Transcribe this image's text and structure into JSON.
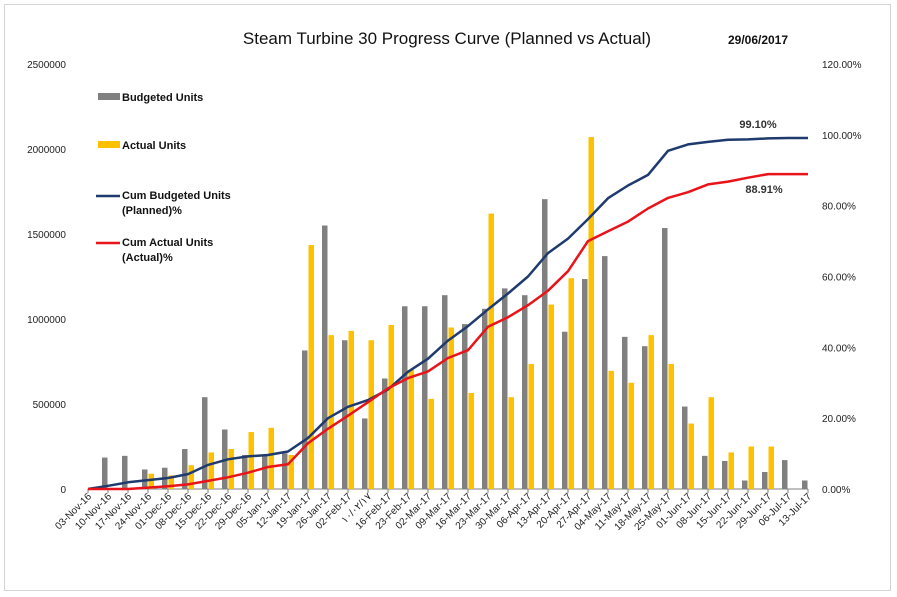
{
  "chart_data": {
    "type": "bar+line",
    "title": "Steam Turbine 30 Progress Curve (Planned vs Actual)",
    "date_label": "29/06/2017",
    "y_left": {
      "ticks": [
        "0",
        "500000",
        "1000000",
        "1500000",
        "2000000",
        "2500000"
      ],
      "ylim": [
        0,
        2500000
      ]
    },
    "y_right": {
      "ticks": [
        "0.00%",
        "20.00%",
        "40.00%",
        "60.00%",
        "80.00%",
        "100.00%",
        "120.00%"
      ],
      "ylim": [
        0,
        1.2
      ]
    },
    "categories": [
      "03-Nov-16",
      "10-Nov-16",
      "17-Nov-16",
      "24-Nov-16",
      "01-Dec-16",
      "08-Dec-16",
      "15-Dec-16",
      "22-Dec-16",
      "29-Dec-16",
      "05-Jan-17",
      "12-Jan-17",
      "19-Jan-17",
      "26-Jan-17",
      "02-Feb-17",
      "١٠/٠٢/١٧",
      "16-Feb-17",
      "23-Feb-17",
      "02-Mar-17",
      "09-Mar-17",
      "16-Mar-17",
      "23-Mar-17",
      "30-Mar-17",
      "06-Apr-17",
      "13-Apr-17",
      "20-Apr-17",
      "27-Apr-17",
      "04-May-17",
      "11-May-17",
      "18-May-17",
      "25-May-17",
      "01-Jun-17",
      "08-Jun-17",
      "15-Jun-17",
      "22-Jun-17",
      "29-Jun-17",
      "06-Jul-17",
      "13-Jul-17"
    ],
    "series": [
      {
        "name": "Budgeted Units",
        "kind": "bar",
        "color": "#808080",
        "values": [
          0,
          185000,
          195000,
          115000,
          125000,
          235000,
          540000,
          350000,
          200000,
          200000,
          210000,
          815000,
          1550000,
          875000,
          415000,
          650000,
          1075000,
          1075000,
          1140000,
          970000,
          1060000,
          1180000,
          1140000,
          1705000,
          925000,
          1235000,
          1370000,
          895000,
          840000,
          1535000,
          485000,
          195000,
          165000,
          50000,
          100000,
          170000,
          50000
        ]
      },
      {
        "name": "Actual Units",
        "kind": "bar",
        "color": "#ffc000",
        "values": [
          0,
          0,
          0,
          90000,
          80000,
          140000,
          215000,
          235000,
          335000,
          360000,
          200000,
          1435000,
          905000,
          930000,
          875000,
          965000,
          700000,
          530000,
          950000,
          565000,
          1620000,
          540000,
          735000,
          1085000,
          1240000,
          2070000,
          695000,
          625000,
          905000,
          735000,
          385000,
          540000,
          215000,
          250000,
          250000,
          0,
          0
        ]
      },
      {
        "name": "Cum Budgeted Units (Planned)%",
        "kind": "line",
        "axis": "right",
        "color": "#1f3a6e",
        "values": [
          0.0,
          0.009,
          0.019,
          0.025,
          0.031,
          0.042,
          0.068,
          0.084,
          0.092,
          0.096,
          0.106,
          0.144,
          0.2,
          0.232,
          0.251,
          0.281,
          0.331,
          0.368,
          0.419,
          0.46,
          0.507,
          0.552,
          0.6,
          0.666,
          0.707,
          0.762,
          0.821,
          0.857,
          0.887,
          0.955,
          0.973,
          0.98,
          0.986,
          0.987,
          0.99,
          0.991,
          0.991
        ]
      },
      {
        "name": "Cum Actual Units (Actual)%",
        "kind": "line",
        "axis": "right",
        "color": "#e8141a",
        "values": [
          0.0,
          0.0,
          0.0,
          0.004,
          0.008,
          0.013,
          0.023,
          0.033,
          0.046,
          0.062,
          0.07,
          0.129,
          0.17,
          0.207,
          0.245,
          0.284,
          0.313,
          0.332,
          0.37,
          0.392,
          0.458,
          0.485,
          0.519,
          0.56,
          0.615,
          0.7,
          0.728,
          0.755,
          0.792,
          0.822,
          0.838,
          0.86,
          0.868,
          0.879,
          0.889,
          0.889,
          0.889
        ]
      }
    ],
    "annotations": [
      {
        "text": "99.10%",
        "series": "Cum Budgeted Units (Planned)%"
      },
      {
        "text": "88.91%",
        "series": "Cum Actual Units (Actual)%"
      }
    ],
    "legend": [
      {
        "label": "Budgeted Units",
        "shape": "bar",
        "color": "#808080"
      },
      {
        "label": "Actual Units",
        "shape": "bar",
        "color": "#ffc000"
      },
      {
        "label_lines": [
          "Cum Budgeted Units",
          "(Planned)%"
        ],
        "shape": "line",
        "color": "#1f3a6e"
      },
      {
        "label_lines": [
          "Cum Actual Units",
          "(Actual)%"
        ],
        "shape": "line",
        "color": "#e8141a"
      }
    ],
    "legend_position": "top-left inside plot",
    "grid": false
  }
}
